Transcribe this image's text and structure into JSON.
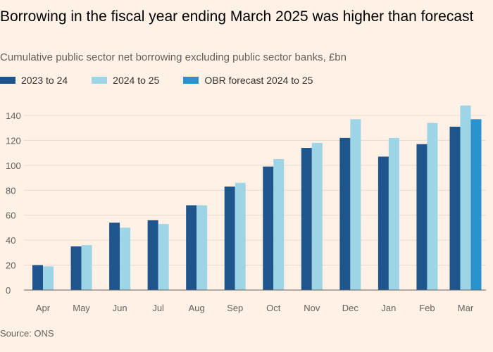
{
  "title": "Borrowing in the fiscal year ending March 2025 was higher than forecast",
  "subtitle": "Cumulative public sector net borrowing excluding public sector banks, £bn",
  "source": "Source: ONS",
  "chart_data": {
    "type": "bar",
    "categories": [
      "Apr",
      "May",
      "Jun",
      "Jul",
      "Aug",
      "Sep",
      "Oct",
      "Nov",
      "Dec",
      "Jan",
      "Feb",
      "Mar"
    ],
    "series": [
      {
        "name": "2023 to 24",
        "color": "#1e558c",
        "values": [
          20,
          35,
          54,
          56,
          68,
          83,
          99,
          114,
          122,
          107,
          117,
          131
        ]
      },
      {
        "name": "2024 to 25",
        "color": "#9dd4e6",
        "values": [
          19,
          36,
          50,
          53,
          68,
          86,
          105,
          118,
          137,
          122,
          134,
          148
        ]
      },
      {
        "name": "OBR forecast 2024 to 25",
        "color": "#2893cc",
        "values": [
          null,
          null,
          null,
          null,
          null,
          null,
          null,
          null,
          null,
          null,
          null,
          137
        ]
      }
    ],
    "yticks": [
      0,
      20,
      40,
      60,
      80,
      100,
      120,
      140
    ],
    "ylim": [
      0,
      150
    ],
    "grid": true,
    "legend": "top-left"
  }
}
